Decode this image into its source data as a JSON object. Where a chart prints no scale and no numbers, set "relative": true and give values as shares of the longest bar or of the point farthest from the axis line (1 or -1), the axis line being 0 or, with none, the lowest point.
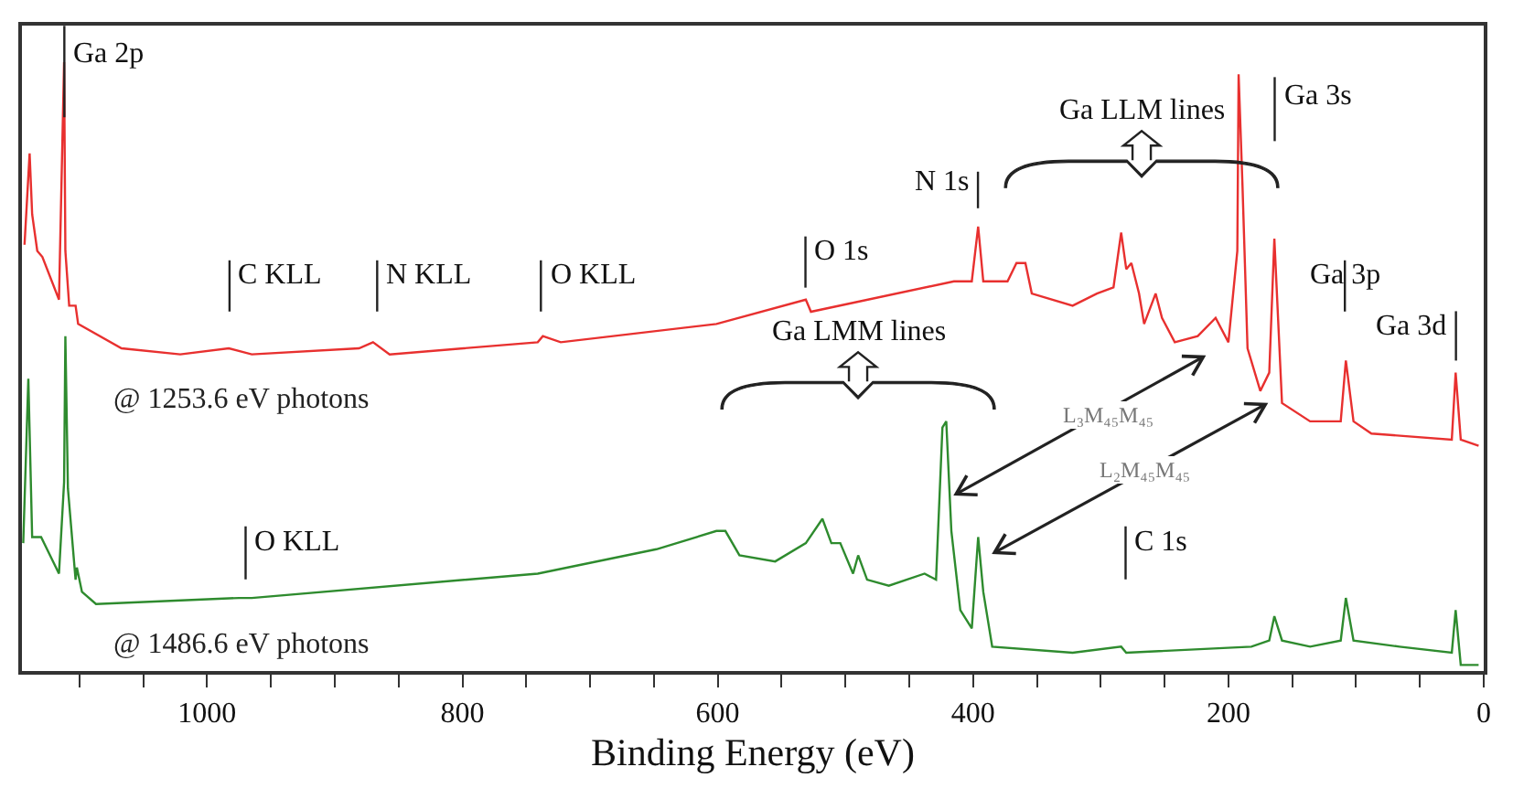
{
  "chart_data": {
    "type": "line",
    "relative": true,
    "xlabel": "Binding Energy (eV)",
    "xlim": [
      1145,
      0
    ],
    "xticks": [
      {
        "value": 1100,
        "label": null
      },
      {
        "value": 1050,
        "label": null
      },
      1000,
      {
        "value": 950,
        "label": null
      },
      800,
      {
        "value": 900,
        "label": null
      },
      {
        "value": 850,
        "label": null
      },
      {
        "value": 750,
        "label": null
      },
      600,
      {
        "value": 700,
        "label": null
      },
      {
        "value": 650,
        "label": null
      },
      {
        "value": 550,
        "label": null
      },
      400,
      {
        "value": 500,
        "label": null
      },
      {
        "value": 450,
        "label": null
      },
      {
        "value": 350,
        "label": null
      },
      200,
      {
        "value": 300,
        "label": null
      },
      {
        "value": 250,
        "label": null
      },
      {
        "value": 150,
        "label": null
      },
      0,
      {
        "value": 100,
        "label": null
      },
      {
        "value": 50,
        "label": null
      }
    ],
    "tick_labels": "x",
    "grid": false,
    "legend": false,
    "marker": "none",
    "line_style": "solid",
    "series": [
      {
        "name": "@ 1253.6 eV photons",
        "color": "#e8302f",
        "x": [
          1143,
          1139,
          1137,
          1133,
          1129,
          1116,
          1112,
          1111,
          1108,
          1103,
          1101,
          1067,
          1021,
          983,
          965,
          881,
          870,
          857,
          741,
          737,
          723,
          601,
          531,
          527,
          415,
          401,
          396,
          392,
          373,
          366,
          359,
          354,
          322,
          303,
          290,
          284,
          280,
          276,
          270,
          266,
          257,
          252,
          242,
          224,
          210,
          200,
          193,
          192,
          189,
          185,
          175,
          168,
          164,
          158,
          136,
          112,
          108,
          102,
          88,
          25,
          22,
          18,
          4
        ],
        "values": [
          0.7,
          0.85,
          0.75,
          0.69,
          0.68,
          0.61,
          1.0,
          0.69,
          0.6,
          0.6,
          0.57,
          0.53,
          0.52,
          0.53,
          0.52,
          0.53,
          0.54,
          0.52,
          0.54,
          0.55,
          0.54,
          0.57,
          0.61,
          0.59,
          0.64,
          0.64,
          0.73,
          0.64,
          0.64,
          0.67,
          0.67,
          0.62,
          0.6,
          0.62,
          0.63,
          0.72,
          0.66,
          0.67,
          0.62,
          0.57,
          0.62,
          0.58,
          0.54,
          0.55,
          0.58,
          0.54,
          0.69,
          0.98,
          0.8,
          0.53,
          0.46,
          0.49,
          0.71,
          0.44,
          0.41,
          0.41,
          0.51,
          0.41,
          0.39,
          0.38,
          0.49,
          0.38,
          0.37
        ]
      },
      {
        "name": "@ 1486.6 eV photons",
        "color": "#2e8b2e",
        "x": [
          1144,
          1140,
          1137,
          1130,
          1116,
          1112,
          1111,
          1109,
          1103,
          1102,
          1098,
          1087,
          975,
          965,
          741,
          648,
          601,
          594,
          583,
          555,
          531,
          518,
          511,
          504,
          494,
          490,
          483,
          466,
          438,
          429,
          424,
          421,
          417,
          410,
          401,
          396,
          392,
          385,
          322,
          284,
          280,
          182,
          168,
          164,
          158,
          136,
          112,
          108,
          102,
          66,
          25,
          22,
          18,
          4
        ],
        "values": [
          0.21,
          0.48,
          0.22,
          0.22,
          0.16,
          0.31,
          0.55,
          0.3,
          0.15,
          0.17,
          0.13,
          0.11,
          0.12,
          0.12,
          0.16,
          0.2,
          0.23,
          0.23,
          0.19,
          0.18,
          0.21,
          0.25,
          0.21,
          0.21,
          0.16,
          0.19,
          0.15,
          0.14,
          0.16,
          0.15,
          0.4,
          0.41,
          0.23,
          0.1,
          0.07,
          0.22,
          0.13,
          0.04,
          0.03,
          0.04,
          0.03,
          0.04,
          0.05,
          0.09,
          0.05,
          0.04,
          0.05,
          0.12,
          0.05,
          0.04,
          0.03,
          0.1,
          0.01,
          0.01
        ]
      }
    ],
    "annotations": [
      "Ga 2p",
      "C KLL",
      "N KLL",
      "O KLL",
      "O 1s",
      "N 1s",
      "Ga LLM lines",
      "Ga 3s",
      "Ga 3p",
      "Ga 3d",
      "Ga LMM lines",
      "L₃M₄₅M₄₅",
      "L₂M₄₅M₄₅",
      "O KLL",
      "C 1s"
    ]
  }
}
